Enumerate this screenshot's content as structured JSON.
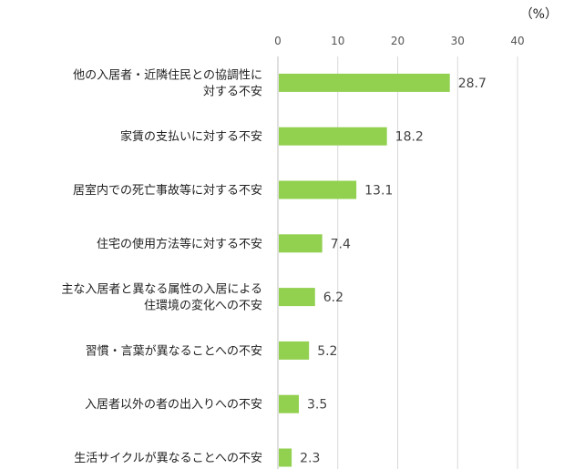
{
  "chart_data": {
    "type": "bar",
    "orientation": "horizontal",
    "unit": "（%）",
    "xlim": [
      0,
      40
    ],
    "ticks": [
      "0",
      "10",
      "20",
      "30",
      "40"
    ],
    "grid": true,
    "bar_color": "#92d050",
    "categories": [
      [
        "他の入居者・近隣住民との協調性に",
        "対する不安"
      ],
      [
        "家賃の支払いに対する不安"
      ],
      [
        "居室内での死亡事故等に対する不安"
      ],
      [
        "住宅の使用方法等に対する不安"
      ],
      [
        "主な入居者と異なる属性の入居による",
        "住環境の変化への不安"
      ],
      [
        "習慣・言葉が異なることへの不安"
      ],
      [
        "入居者以外の者の出入りへの不安"
      ],
      [
        "生活サイクルが異なることへの不安"
      ]
    ],
    "values": [
      28.7,
      18.2,
      13.1,
      7.4,
      6.2,
      5.2,
      3.5,
      2.3
    ],
    "value_labels": [
      "28.7",
      "18.2",
      "13.1",
      "7.4",
      "6.2",
      "5.2",
      "3.5",
      "2.3"
    ]
  }
}
